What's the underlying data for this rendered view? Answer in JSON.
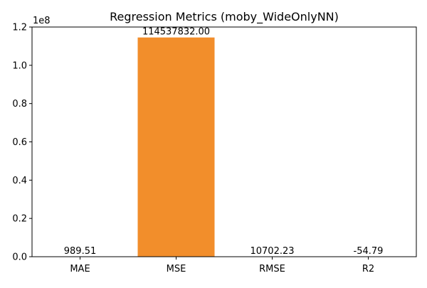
{
  "chart_data": {
    "type": "bar",
    "title": "Regression Metrics (moby_WideOnlyNN)",
    "categories": [
      "MAE",
      "MSE",
      "RMSE",
      "R2"
    ],
    "values": [
      989.51,
      114537832.0,
      10702.23,
      -54.79
    ],
    "value_labels": [
      "989.51",
      "114537832.00",
      "10702.23",
      "-54.79"
    ],
    "bar_colors": [
      "#f28e2b",
      "#f28e2b",
      "#f28e2b",
      "#f28e2b"
    ],
    "ylim": [
      0,
      120000000
    ],
    "y_ticks": [
      0,
      20000000,
      40000000,
      60000000,
      80000000,
      100000000,
      120000000
    ],
    "y_tick_labels": [
      "0.0",
      "0.2",
      "0.4",
      "0.6",
      "0.8",
      "1.0",
      "1.2"
    ],
    "y_multiplier_label": "1e8",
    "xlabel": "",
    "ylabel": "",
    "grid": false,
    "legend": "none"
  }
}
